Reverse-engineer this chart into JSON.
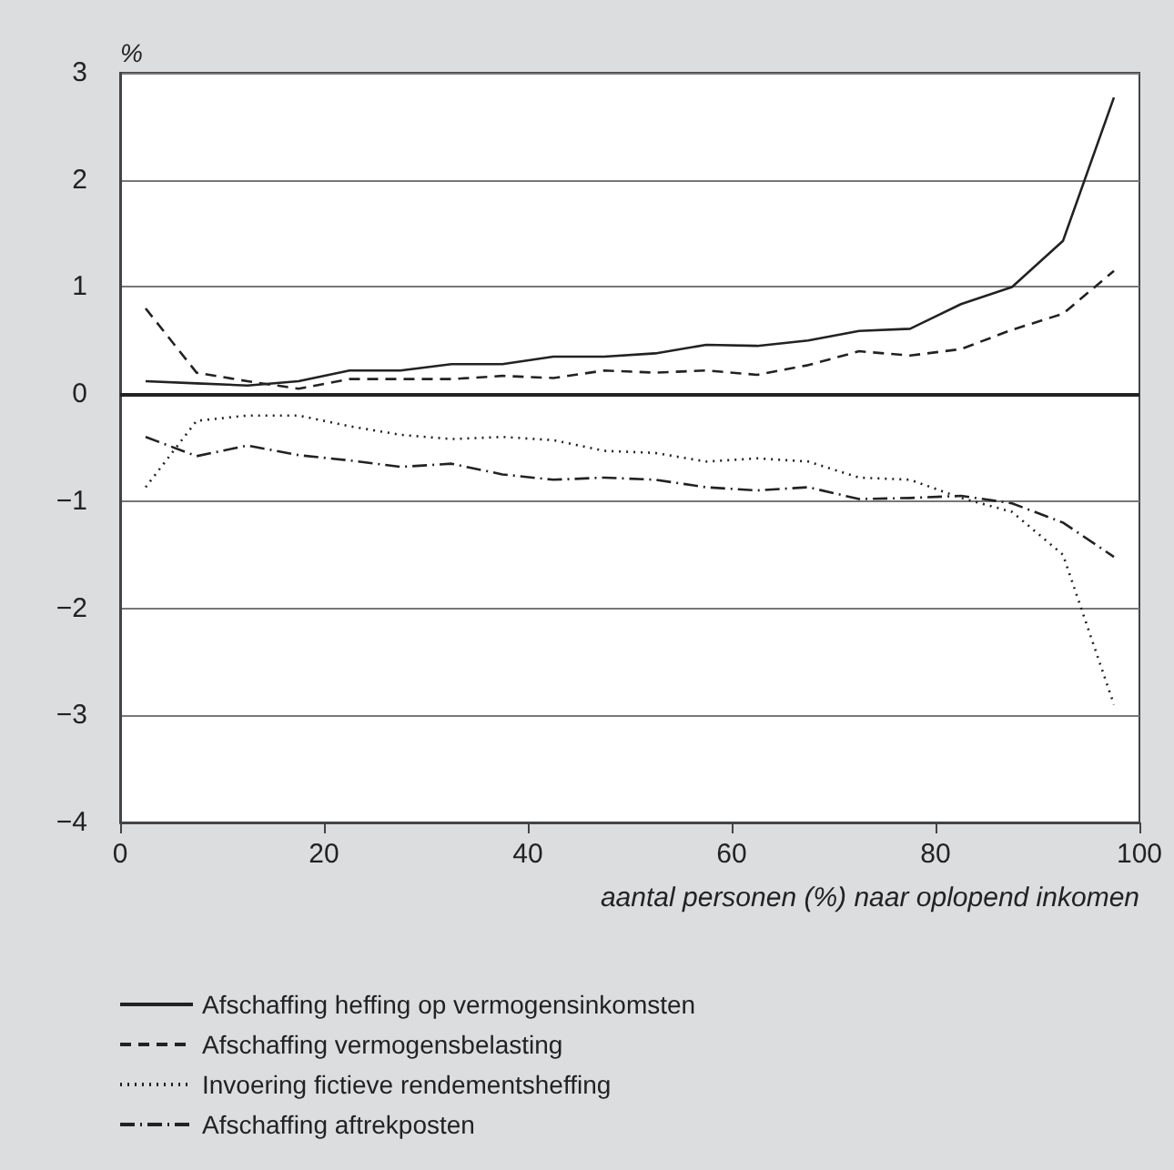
{
  "chart_data": {
    "type": "line",
    "ylabel": "%",
    "xlabel": "aantal personen (%) naar oplopend inkomen",
    "x": [
      2.5,
      7.5,
      12.5,
      17.5,
      22.5,
      27.5,
      32.5,
      37.5,
      42.5,
      47.5,
      52.5,
      57.5,
      62.5,
      67.5,
      72.5,
      77.5,
      82.5,
      87.5,
      92.5,
      97.5
    ],
    "series": [
      {
        "name": "Afschaffing heffing op vermogensinkomsten",
        "color": "#222222",
        "line_style": "solid",
        "values": [
          0.12,
          0.1,
          0.08,
          0.12,
          0.22,
          0.22,
          0.28,
          0.28,
          0.35,
          0.35,
          0.38,
          0.46,
          0.45,
          0.5,
          0.59,
          0.61,
          0.84,
          1.0,
          1.43,
          2.77
        ]
      },
      {
        "name": "Afschaffing vermogensbelasting",
        "color": "#222222",
        "line_style": "dashed",
        "values": [
          0.8,
          0.2,
          0.12,
          0.05,
          0.14,
          0.14,
          0.14,
          0.17,
          0.15,
          0.22,
          0.2,
          0.22,
          0.18,
          0.27,
          0.4,
          0.36,
          0.42,
          0.6,
          0.75,
          1.15
        ]
      },
      {
        "name": "Invoering fictieve rendementsheffing",
        "color": "#222222",
        "line_style": "dotted",
        "values": [
          -0.87,
          -0.25,
          -0.2,
          -0.2,
          -0.3,
          -0.38,
          -0.42,
          -0.4,
          -0.43,
          -0.53,
          -0.55,
          -0.63,
          -0.6,
          -0.63,
          -0.78,
          -0.8,
          -0.97,
          -1.1,
          -1.5,
          -2.9
        ]
      },
      {
        "name": "Afschaffing aftrekposten",
        "color": "#222222",
        "line_style": "dashdot",
        "values": [
          -0.4,
          -0.58,
          -0.48,
          -0.57,
          -0.62,
          -0.68,
          -0.65,
          -0.75,
          -0.8,
          -0.78,
          -0.8,
          -0.87,
          -0.9,
          -0.87,
          -0.98,
          -0.97,
          -0.95,
          -1.02,
          -1.2,
          -1.52
        ]
      }
    ],
    "xlim": [
      0,
      100
    ],
    "xticks": [
      0,
      20,
      40,
      60,
      80,
      100
    ],
    "ylim": [
      -4,
      3
    ],
    "yticks": [
      -4,
      -3,
      -2,
      -1,
      0,
      1,
      2,
      3
    ],
    "ref_lines": [
      {
        "axis": "y",
        "value": 0,
        "color": "#222222"
      }
    ],
    "grid": "y",
    "legend": "bottom",
    "marker": "none"
  }
}
